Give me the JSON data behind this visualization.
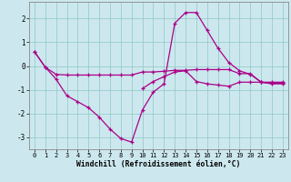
{
  "xlabel": "Windchill (Refroidissement éolien,°C)",
  "background_color": "#cce8ee",
  "grid_color": "#99cccc",
  "line_color": "#aa0088",
  "xlim": [
    -0.5,
    23.5
  ],
  "ylim": [
    -3.5,
    2.7
  ],
  "xticks": [
    0,
    1,
    2,
    3,
    4,
    5,
    6,
    7,
    8,
    9,
    10,
    11,
    12,
    13,
    14,
    15,
    16,
    17,
    18,
    19,
    20,
    21,
    22,
    23
  ],
  "yticks": [
    -3,
    -2,
    -1,
    0,
    1,
    2
  ],
  "line1_x": [
    0,
    1,
    2,
    3,
    4,
    5,
    6,
    7,
    8,
    9,
    10,
    11,
    12,
    13,
    14,
    15,
    16,
    17,
    18,
    19,
    20,
    21,
    22,
    23
  ],
  "line1_y": [
    0.6,
    -0.05,
    -0.35,
    -0.38,
    -0.38,
    -0.38,
    -0.38,
    -0.38,
    -0.38,
    -0.38,
    -0.25,
    -0.25,
    -0.22,
    -0.18,
    -0.18,
    -0.15,
    -0.15,
    -0.15,
    -0.15,
    -0.32,
    -0.32,
    -0.68,
    -0.68,
    -0.68
  ],
  "line2_x": [
    0,
    1,
    2,
    3,
    4,
    5,
    6,
    7,
    8,
    9,
    10,
    11,
    12,
    13,
    14,
    15,
    16,
    17,
    18,
    19,
    20,
    21,
    22,
    23
  ],
  "line2_y": [
    0.6,
    -0.05,
    -0.55,
    -1.25,
    -1.5,
    -1.75,
    -2.15,
    -2.65,
    -3.05,
    -3.2,
    -1.85,
    -1.1,
    -0.75,
    1.8,
    2.25,
    2.25,
    1.5,
    0.75,
    0.15,
    -0.2,
    -0.35,
    -0.68,
    -0.75,
    -0.75
  ],
  "line3_x": [
    10,
    11,
    12,
    13,
    14,
    15,
    16,
    17,
    18,
    19,
    20,
    21,
    22,
    23
  ],
  "line3_y": [
    -0.95,
    -0.65,
    -0.45,
    -0.25,
    -0.2,
    -0.65,
    -0.75,
    -0.8,
    -0.85,
    -0.68,
    -0.68,
    -0.68,
    -0.72,
    -0.72
  ]
}
